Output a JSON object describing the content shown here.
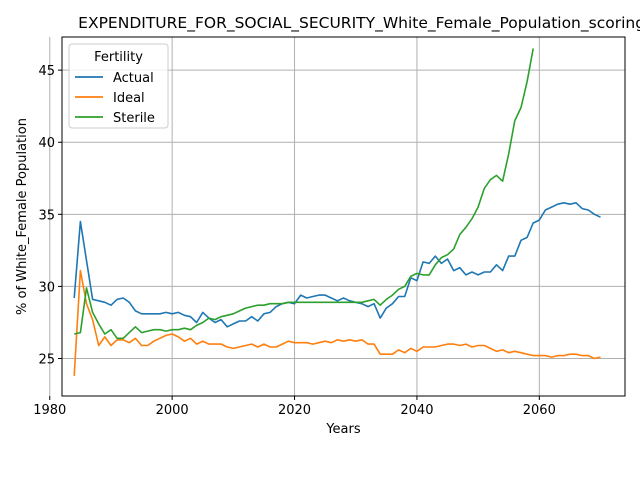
{
  "chart_data": {
    "type": "line",
    "title": "EXPENDITURE_FOR_SOCIAL_SECURITY_White_Female_Population_scoring_",
    "xlabel": "Years",
    "ylabel": "% of White_Female Population",
    "xlim": [
      1982,
      2074
    ],
    "ylim": [
      22.4,
      47.3
    ],
    "xticks": [
      1980,
      2000,
      2020,
      2040,
      2060
    ],
    "yticks": [
      25,
      30,
      35,
      40,
      45
    ],
    "grid": true,
    "legend": {
      "title": "Fertility",
      "placement": "top-left"
    },
    "series": [
      {
        "name": "Actual",
        "color": "#1f77b4",
        "x": [
          1984,
          1985,
          1986,
          1987,
          1988,
          1989,
          1990,
          1991,
          1992,
          1993,
          1994,
          1995,
          1996,
          1997,
          1998,
          1999,
          2000,
          2001,
          2002,
          2003,
          2004,
          2005,
          2006,
          2007,
          2008,
          2009,
          2010,
          2011,
          2012,
          2013,
          2014,
          2015,
          2016,
          2017,
          2018,
          2019,
          2020,
          2021,
          2022,
          2023,
          2024,
          2025,
          2026,
          2027,
          2028,
          2029,
          2030,
          2031,
          2032,
          2033,
          2034,
          2035,
          2036,
          2037,
          2038,
          2039,
          2040,
          2041,
          2042,
          2043,
          2044,
          2045,
          2046,
          2047,
          2048,
          2049,
          2050,
          2051,
          2052,
          2053,
          2054,
          2055,
          2056,
          2057,
          2058,
          2059,
          2060,
          2061,
          2062,
          2063,
          2064,
          2065,
          2066,
          2067,
          2068,
          2069,
          2070
        ],
        "values": [
          29.2,
          34.5,
          31.8,
          29.1,
          29.0,
          28.9,
          28.7,
          29.1,
          29.2,
          28.9,
          28.3,
          28.1,
          28.1,
          28.1,
          28.1,
          28.2,
          28.1,
          28.2,
          28.0,
          27.9,
          27.5,
          28.2,
          27.8,
          27.5,
          27.7,
          27.2,
          27.4,
          27.6,
          27.6,
          27.9,
          27.6,
          28.1,
          28.2,
          28.6,
          28.8,
          28.9,
          28.8,
          29.4,
          29.2,
          29.3,
          29.4,
          29.4,
          29.2,
          29.0,
          29.2,
          29.0,
          28.9,
          28.8,
          28.6,
          28.8,
          27.8,
          28.5,
          28.8,
          29.3,
          29.3,
          30.6,
          30.4,
          31.7,
          31.6,
          32.1,
          31.6,
          31.9,
          31.1,
          31.3,
          30.8,
          31.0,
          30.8,
          31.0,
          31.0,
          31.5,
          31.1,
          32.1,
          32.1,
          33.2,
          33.4,
          34.4,
          34.6,
          35.3,
          35.5,
          35.7,
          35.8,
          35.7,
          35.8,
          35.4,
          35.3,
          35.0,
          34.8
        ]
      },
      {
        "name": "Ideal",
        "color": "#ff7f0e",
        "x": [
          1984,
          1985,
          1986,
          1987,
          1988,
          1989,
          1990,
          1991,
          1992,
          1993,
          1994,
          1995,
          1996,
          1997,
          1998,
          1999,
          2000,
          2001,
          2002,
          2003,
          2004,
          2005,
          2006,
          2007,
          2008,
          2009,
          2010,
          2011,
          2012,
          2013,
          2014,
          2015,
          2016,
          2017,
          2018,
          2019,
          2020,
          2021,
          2022,
          2023,
          2024,
          2025,
          2026,
          2027,
          2028,
          2029,
          2030,
          2031,
          2032,
          2033,
          2034,
          2035,
          2036,
          2037,
          2038,
          2039,
          2040,
          2041,
          2042,
          2043,
          2044,
          2045,
          2046,
          2047,
          2048,
          2049,
          2050,
          2051,
          2052,
          2053,
          2054,
          2055,
          2056,
          2057,
          2058,
          2059,
          2060,
          2061,
          2062,
          2063,
          2064,
          2065,
          2066,
          2067,
          2068,
          2069,
          2070
        ],
        "values": [
          23.8,
          31.1,
          28.8,
          27.7,
          25.9,
          26.5,
          25.9,
          26.3,
          26.3,
          26.1,
          26.4,
          25.9,
          25.9,
          26.2,
          26.4,
          26.6,
          26.7,
          26.5,
          26.2,
          26.4,
          26.0,
          26.2,
          26.0,
          26.0,
          26.0,
          25.8,
          25.7,
          25.8,
          25.9,
          26.0,
          25.8,
          26.0,
          25.8,
          25.8,
          26.0,
          26.2,
          26.1,
          26.1,
          26.1,
          26.0,
          26.1,
          26.2,
          26.1,
          26.3,
          26.2,
          26.3,
          26.2,
          26.3,
          26.0,
          26.0,
          25.3,
          25.3,
          25.3,
          25.6,
          25.4,
          25.7,
          25.5,
          25.8,
          25.8,
          25.8,
          25.9,
          26.0,
          26.0,
          25.9,
          26.0,
          25.8,
          25.9,
          25.9,
          25.7,
          25.5,
          25.6,
          25.4,
          25.5,
          25.4,
          25.3,
          25.2,
          25.2,
          25.2,
          25.1,
          25.2,
          25.2,
          25.3,
          25.3,
          25.2,
          25.2,
          25.0,
          25.1
        ]
      },
      {
        "name": "Sterile",
        "color": "#2ca02c",
        "x": [
          1984,
          1985,
          1986,
          1987,
          1988,
          1989,
          1990,
          1991,
          1992,
          1993,
          1994,
          1995,
          1996,
          1997,
          1998,
          1999,
          2000,
          2001,
          2002,
          2003,
          2004,
          2005,
          2006,
          2007,
          2008,
          2009,
          2010,
          2011,
          2012,
          2013,
          2014,
          2015,
          2016,
          2017,
          2018,
          2019,
          2020,
          2021,
          2022,
          2023,
          2024,
          2025,
          2026,
          2027,
          2028,
          2029,
          2030,
          2031,
          2032,
          2033,
          2034,
          2035,
          2036,
          2037,
          2038,
          2039,
          2040,
          2041,
          2042,
          2043,
          2044,
          2045,
          2046,
          2047,
          2048,
          2049,
          2050,
          2051,
          2052,
          2053,
          2054,
          2055,
          2056,
          2057,
          2058,
          2059
        ],
        "values": [
          26.7,
          26.8,
          29.9,
          28.2,
          27.4,
          26.7,
          27.0,
          26.4,
          26.4,
          26.8,
          27.2,
          26.8,
          26.9,
          27.0,
          27.0,
          26.9,
          27.0,
          27.0,
          27.1,
          27.0,
          27.3,
          27.5,
          27.8,
          27.7,
          27.9,
          28.0,
          28.1,
          28.3,
          28.5,
          28.6,
          28.7,
          28.7,
          28.8,
          28.8,
          28.8,
          28.9,
          28.9,
          28.9,
          28.9,
          28.9,
          28.9,
          28.9,
          28.9,
          28.9,
          28.9,
          28.9,
          28.9,
          28.9,
          29.0,
          29.1,
          28.7,
          29.1,
          29.4,
          29.8,
          30.0,
          30.7,
          30.9,
          30.8,
          30.8,
          31.5,
          32.0,
          32.2,
          32.6,
          33.6,
          34.1,
          34.7,
          35.5,
          36.8,
          37.4,
          37.7,
          37.3,
          39.2,
          41.5,
          42.4,
          44.2,
          46.5
        ]
      }
    ]
  }
}
